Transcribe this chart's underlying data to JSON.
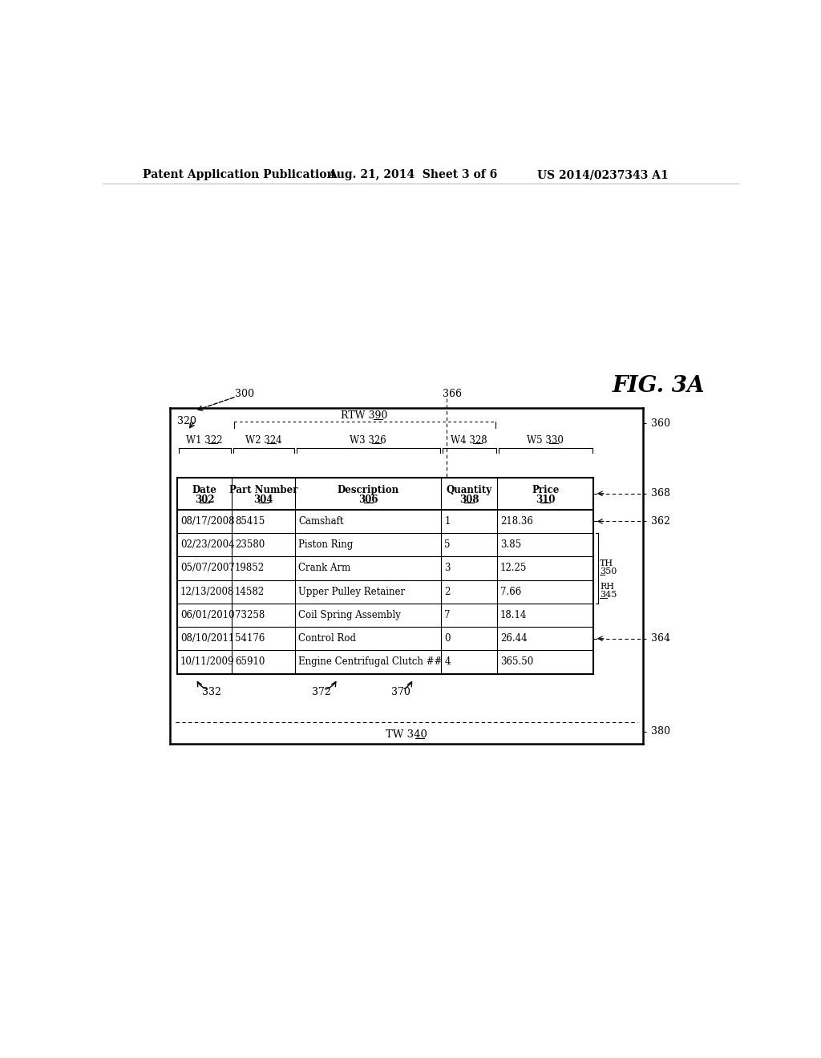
{
  "header_text": "Patent Application Publication",
  "header_date": "Aug. 21, 2014  Sheet 3 of 6",
  "header_patent": "US 2014/0237343 A1",
  "fig_label": "FIG. 3A",
  "table_headers": [
    [
      "Date",
      "302"
    ],
    [
      "Part Number",
      "304"
    ],
    [
      "Description",
      "306"
    ],
    [
      "Quantity",
      "308"
    ],
    [
      "Price",
      "310"
    ]
  ],
  "table_data": [
    [
      "08/17/2008",
      "85415",
      "Camshaft",
      "1",
      "218.36"
    ],
    [
      "02/23/2004",
      "23580",
      "Piston Ring",
      "5",
      "3.85"
    ],
    [
      "05/07/2007",
      "19852",
      "Crank Arm",
      "3",
      "12.25"
    ],
    [
      "12/13/2008",
      "14582",
      "Upper Pulley Retainer",
      "2",
      "7.66"
    ],
    [
      "06/01/2010",
      "73258",
      "Coil Spring Assembly",
      "7",
      "18.14"
    ],
    [
      "08/10/2011",
      "54176",
      "Control Rod",
      "0",
      "26.44"
    ],
    [
      "10/11/2009",
      "65910",
      "Engine Centrifugal Clutch ##",
      "4",
      "365.50"
    ]
  ],
  "w_labels": [
    [
      "W1",
      "322"
    ],
    [
      "W2",
      "324"
    ],
    [
      "W3",
      "326"
    ],
    [
      "W4",
      "328"
    ],
    [
      "W5",
      "330"
    ]
  ],
  "background_color": "#ffffff",
  "text_color": "#000000"
}
